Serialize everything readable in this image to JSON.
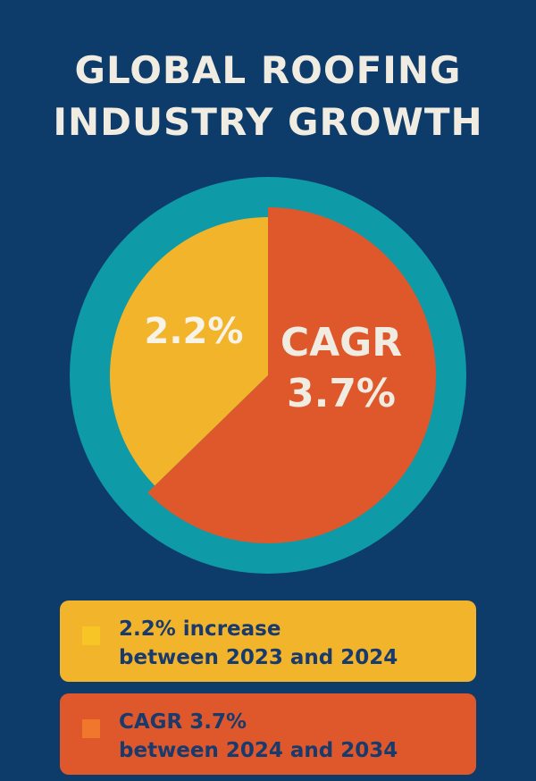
{
  "title": {
    "line1": "GLOBAL ROOFING",
    "line2": "INDUSTRY GROWTH"
  },
  "colors": {
    "background": "#0d3b6a",
    "ring": "#0e9aa7",
    "yellow": "#f2b42a",
    "orange": "#de582c",
    "text_light": "#f1ece2",
    "text_dark": "#183a6c"
  },
  "chart_data": {
    "type": "pie",
    "slices": [
      {
        "label_line1": "CAGR",
        "label_line2": "3.7%",
        "value": 3.7,
        "color": "#de582c"
      },
      {
        "label_line1": "2.2%",
        "label_line2": "",
        "value": 2.2,
        "color": "#f2b42a"
      }
    ],
    "legend": [
      {
        "line1": "2.2% increase",
        "line2": "between 2023 and 2024",
        "color": "#f2b42a",
        "swatch": "#f8c526"
      },
      {
        "line1": "CAGR 3.7%",
        "line2": "between 2024 and 2034",
        "color": "#de582c",
        "swatch": "#f0772b"
      }
    ]
  }
}
